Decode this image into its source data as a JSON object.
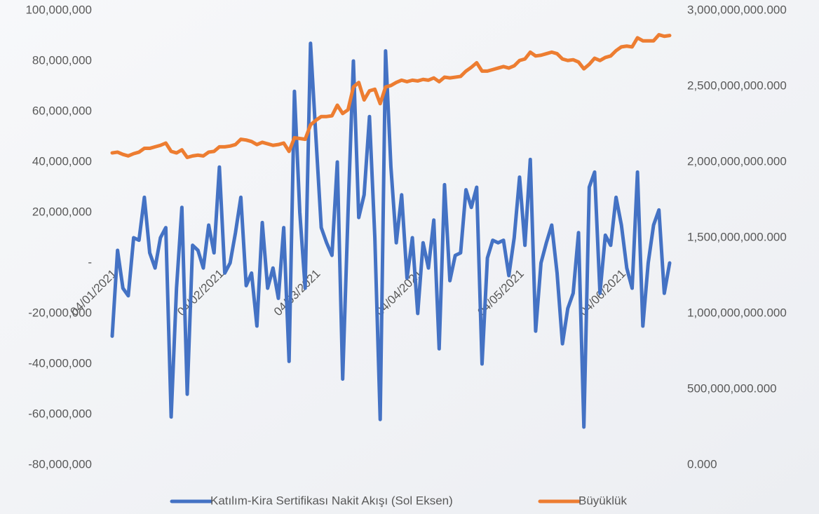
{
  "chart_data": {
    "type": "line",
    "categories": [
      "04/01/2021",
      null,
      null,
      null,
      null,
      null,
      null,
      null,
      null,
      null,
      null,
      null,
      null,
      null,
      null,
      null,
      null,
      null,
      null,
      null,
      "04/02/2021",
      null,
      null,
      null,
      null,
      null,
      null,
      null,
      null,
      null,
      null,
      null,
      null,
      null,
      null,
      null,
      null,
      null,
      "04/03/2021",
      null,
      null,
      null,
      null,
      null,
      null,
      null,
      null,
      null,
      null,
      null,
      null,
      null,
      null,
      null,
      null,
      null,
      null,
      "04/04/2021",
      null,
      null,
      null,
      null,
      null,
      null,
      null,
      null,
      null,
      null,
      null,
      null,
      null,
      null,
      null,
      null,
      null,
      null,
      "04/05/2021",
      null,
      null,
      null,
      null,
      null,
      null,
      null,
      null,
      null,
      null,
      null,
      null,
      null,
      null,
      null,
      null,
      null,
      null,
      "04/06/2021",
      null,
      null,
      null,
      null,
      null,
      null,
      null,
      null,
      null
    ],
    "series": [
      {
        "name": "Katılım-Kira Sertifikası Nakit Akışı (Sol Eksen)",
        "color": "#4472c4",
        "values": [
          -29000000,
          5000000,
          -10000000,
          -13000000,
          10000000,
          9000000,
          26000000,
          4000000,
          -2000000,
          10000000,
          14000000,
          -61000000,
          -10000000,
          22000000,
          -52000000,
          7000000,
          5000000,
          -2000000,
          15000000,
          4000000,
          38000000,
          -4000000,
          0,
          12000000,
          26000000,
          -9000000,
          -4000000,
          -25000000,
          16000000,
          -10000000,
          -2000000,
          -14000000,
          14000000,
          -39000000,
          68000000,
          20000000,
          -10000000,
          87000000,
          50000000,
          14000000,
          8000000,
          3000000,
          40000000,
          -46000000,
          20000000,
          80000000,
          18000000,
          27000000,
          58000000,
          10000000,
          -62000000,
          84000000,
          38000000,
          8000000,
          27000000,
          -6000000,
          10000000,
          -20000000,
          8000000,
          -2000000,
          17000000,
          -34000000,
          31000000,
          -7000000,
          3000000,
          4000000,
          29000000,
          22000000,
          30000000,
          -40000000,
          2000000,
          9000000,
          8000000,
          9000000,
          -5000000,
          10000000,
          34000000,
          7000000,
          41000000,
          -27000000,
          0,
          8000000,
          15000000,
          -4000000,
          -32000000,
          -18000000,
          -12000000,
          12000000,
          -65000000,
          30000000,
          36000000,
          -12000000,
          11000000,
          7000000,
          26000000,
          15000000,
          -2000000,
          -10000000,
          36000000,
          -25000000,
          0,
          15000000,
          21000000,
          -12000000,
          0
        ]
      },
      {
        "name": "Büyüklük",
        "color": "#ed7d31",
        "axis": "y2",
        "values": [
          2060000000,
          2065000000,
          2050000000,
          2040000000,
          2055000000,
          2065000000,
          2090000000,
          2090000000,
          2100000000,
          2110000000,
          2125000000,
          2070000000,
          2060000000,
          2080000000,
          2030000000,
          2040000000,
          2045000000,
          2040000000,
          2065000000,
          2070000000,
          2100000000,
          2100000000,
          2105000000,
          2115000000,
          2150000000,
          2145000000,
          2135000000,
          2115000000,
          2130000000,
          2120000000,
          2110000000,
          2115000000,
          2125000000,
          2070000000,
          2160000000,
          2155000000,
          2150000000,
          2245000000,
          2275000000,
          2300000000,
          2300000000,
          2305000000,
          2375000000,
          2320000000,
          2345000000,
          2495000000,
          2525000000,
          2410000000,
          2470000000,
          2480000000,
          2385000000,
          2495000000,
          2505000000,
          2525000000,
          2540000000,
          2530000000,
          2540000000,
          2535000000,
          2545000000,
          2540000000,
          2555000000,
          2530000000,
          2560000000,
          2555000000,
          2560000000,
          2565000000,
          2600000000,
          2625000000,
          2655000000,
          2600000000,
          2600000000,
          2610000000,
          2620000000,
          2630000000,
          2620000000,
          2635000000,
          2670000000,
          2680000000,
          2725000000,
          2700000000,
          2705000000,
          2715000000,
          2725000000,
          2715000000,
          2680000000,
          2670000000,
          2675000000,
          2660000000,
          2615000000,
          2645000000,
          2685000000,
          2670000000,
          2690000000,
          2700000000,
          2735000000,
          2760000000,
          2765000000,
          2760000000,
          2820000000,
          2800000000,
          2800000000,
          2800000000,
          2840000000,
          2830000000,
          2835000000
        ]
      }
    ],
    "ylim": [
      -80000000,
      100000000
    ],
    "yticks": [
      {
        "value": -80000000,
        "label": "-80,000,000"
      },
      {
        "value": -60000000,
        "label": "-60,000,000"
      },
      {
        "value": -40000000,
        "label": "-40,000,000"
      },
      {
        "value": -20000000,
        "label": "-20,000,000"
      },
      {
        "value": 0,
        "label": "-"
      },
      {
        "value": 20000000,
        "label": "20,000,000"
      },
      {
        "value": 40000000,
        "label": "40,000,000"
      },
      {
        "value": 60000000,
        "label": "60,000,000"
      },
      {
        "value": 80000000,
        "label": "80,000,000"
      },
      {
        "value": 100000000,
        "label": "100,000,000"
      }
    ],
    "y2lim": [
      0,
      3000000000
    ],
    "y2ticks": [
      {
        "value": 0,
        "label": "0.000"
      },
      {
        "value": 500000000,
        "label": "500,000,000.000"
      },
      {
        "value": 1000000000,
        "label": "1,000,000,000.000"
      },
      {
        "value": 1500000000,
        "label": "1,500,000,000.000"
      },
      {
        "value": 2000000000,
        "label": "2,000,000,000.000"
      },
      {
        "value": 2500000000,
        "label": "2,500,000,000.000"
      },
      {
        "value": 3000000000,
        "label": "3,000,000,000.000"
      }
    ],
    "legend": "bottom"
  }
}
